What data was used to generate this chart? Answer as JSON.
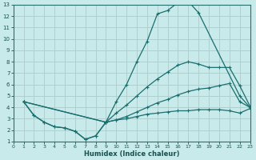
{
  "xlabel": "Humidex (Indice chaleur)",
  "bg_color": "#c8eaea",
  "grid_color": "#b0d0d0",
  "line_color": "#1a6e6e",
  "xlim": [
    0,
    23
  ],
  "ylim": [
    1,
    13
  ],
  "xticks": [
    0,
    1,
    2,
    3,
    4,
    5,
    6,
    7,
    8,
    9,
    10,
    11,
    12,
    13,
    14,
    15,
    16,
    17,
    18,
    19,
    20,
    21,
    22,
    23
  ],
  "yticks": [
    1,
    2,
    3,
    4,
    5,
    6,
    7,
    8,
    9,
    10,
    11,
    12,
    13
  ],
  "line1_x": [
    1,
    2,
    3,
    4,
    5,
    6,
    7,
    8,
    9,
    10,
    11,
    12,
    13,
    14,
    15,
    16,
    17,
    18,
    22,
    23
  ],
  "line1_y": [
    4.5,
    3.3,
    2.7,
    2.3,
    2.2,
    1.9,
    1.2,
    1.5,
    2.7,
    4.5,
    6.0,
    8.0,
    9.8,
    12.2,
    12.5,
    13.2,
    13.3,
    12.3,
    5.0,
    4.0
  ],
  "line2_x": [
    1,
    9,
    10,
    11,
    12,
    13,
    14,
    15,
    16,
    17,
    18,
    19,
    20,
    21,
    22,
    23
  ],
  "line2_y": [
    4.5,
    2.7,
    3.5,
    4.2,
    5.0,
    5.8,
    6.5,
    7.1,
    7.7,
    8.0,
    7.8,
    7.5,
    7.5,
    7.5,
    5.9,
    4.1
  ],
  "line3_x": [
    1,
    9,
    10,
    11,
    12,
    13,
    14,
    15,
    16,
    17,
    18,
    19,
    20,
    21,
    22,
    23
  ],
  "line3_y": [
    4.5,
    2.7,
    2.9,
    3.2,
    3.6,
    4.0,
    4.4,
    4.7,
    5.1,
    5.4,
    5.6,
    5.7,
    5.9,
    6.1,
    4.5,
    4.0
  ],
  "line4_x": [
    1,
    2,
    3,
    4,
    5,
    6,
    7,
    8,
    9,
    10,
    11,
    12,
    13,
    14,
    15,
    16,
    17,
    18,
    19,
    20,
    21,
    22,
    23
  ],
  "line4_y": [
    4.5,
    3.3,
    2.7,
    2.3,
    2.2,
    1.9,
    1.2,
    1.5,
    2.7,
    2.9,
    3.0,
    3.2,
    3.4,
    3.5,
    3.6,
    3.7,
    3.7,
    3.8,
    3.8,
    3.8,
    3.7,
    3.5,
    3.9
  ]
}
